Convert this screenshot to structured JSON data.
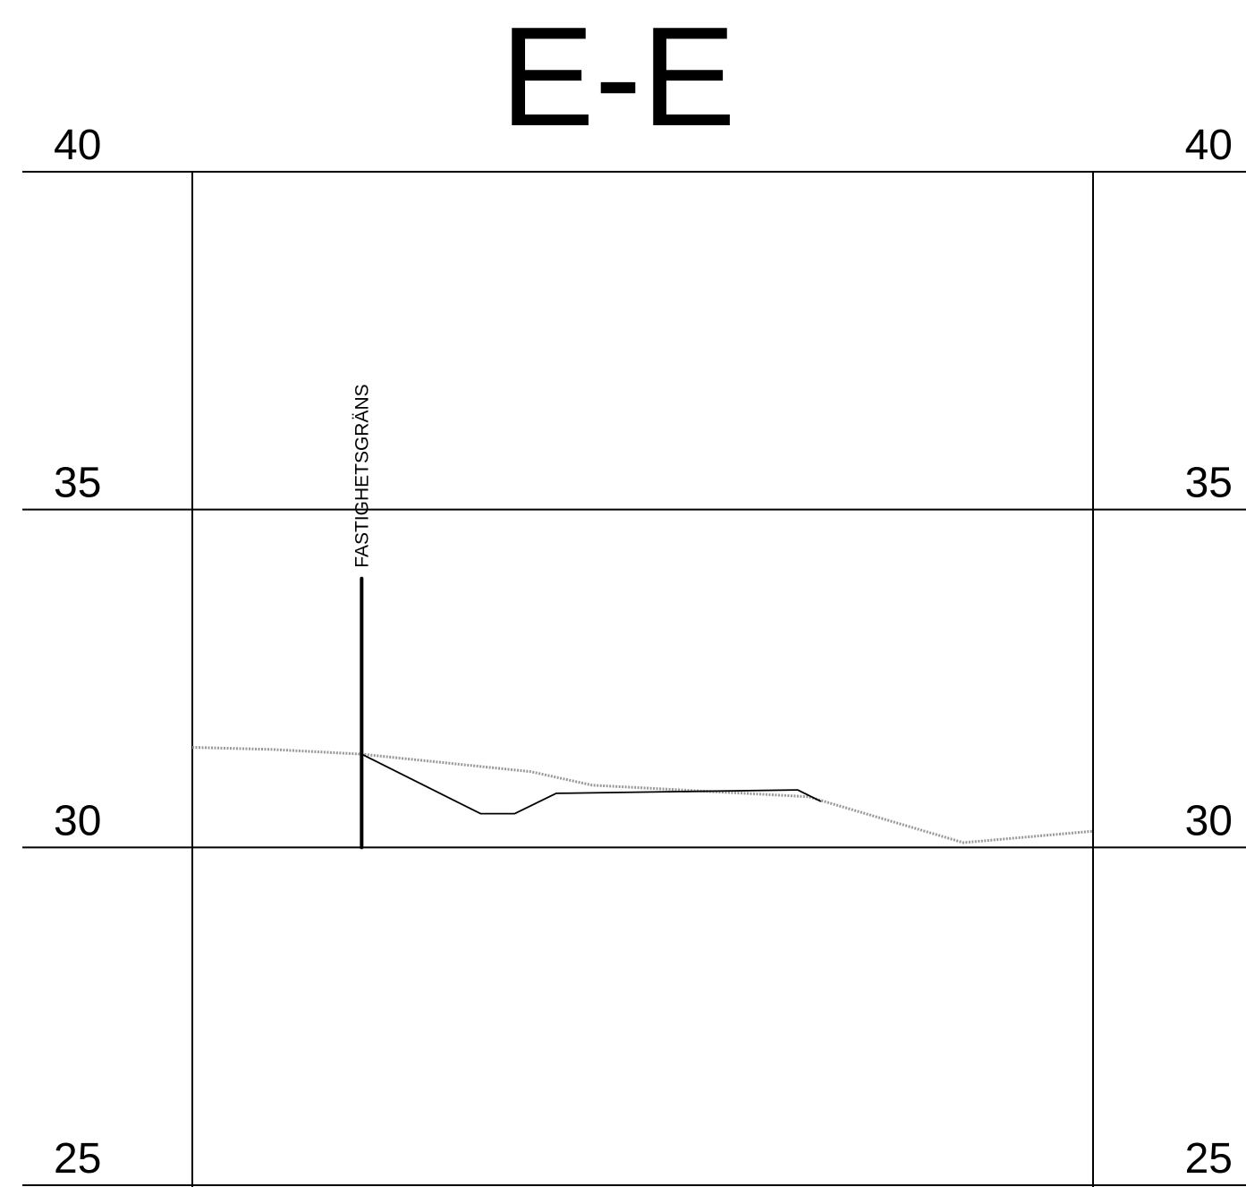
{
  "title": "E-E",
  "chart_data": {
    "type": "line",
    "title": "E-E",
    "xlabel": "",
    "ylabel": "",
    "ylim": [
      25,
      40
    ],
    "y_ticks": [
      40,
      35,
      30,
      25
    ],
    "y_tick_labels": [
      "40",
      "35",
      "30",
      "25"
    ],
    "grid": true,
    "series": [
      {
        "key": "existing-ground",
        "color": "#999999",
        "dash": "dotted",
        "points": [
          [
            0,
            31.48
          ],
          [
            4.4,
            31.45
          ],
          [
            9.4,
            31.38
          ],
          [
            18.8,
            31.12
          ],
          [
            22.2,
            30.92
          ],
          [
            34.2,
            30.75
          ],
          [
            42.8,
            30.07
          ],
          [
            50,
            30.24
          ]
        ]
      },
      {
        "key": "proposed-ground",
        "color": "#000000",
        "dash": "solid",
        "points": [
          [
            9.4,
            31.38
          ],
          [
            16.0,
            30.5
          ],
          [
            17.9,
            30.5
          ],
          [
            20.2,
            30.8
          ],
          [
            33.6,
            30.85
          ],
          [
            34.9,
            30.68
          ]
        ]
      }
    ],
    "annotations": [
      {
        "key": "property-boundary",
        "text": "FASTIGHETSGRÄNS",
        "x": 9.4,
        "y_from": 30.0,
        "y_to": 33.98
      }
    ]
  },
  "colors": {
    "grid": "#000000",
    "existing": "#999999",
    "proposed": "#000000"
  }
}
